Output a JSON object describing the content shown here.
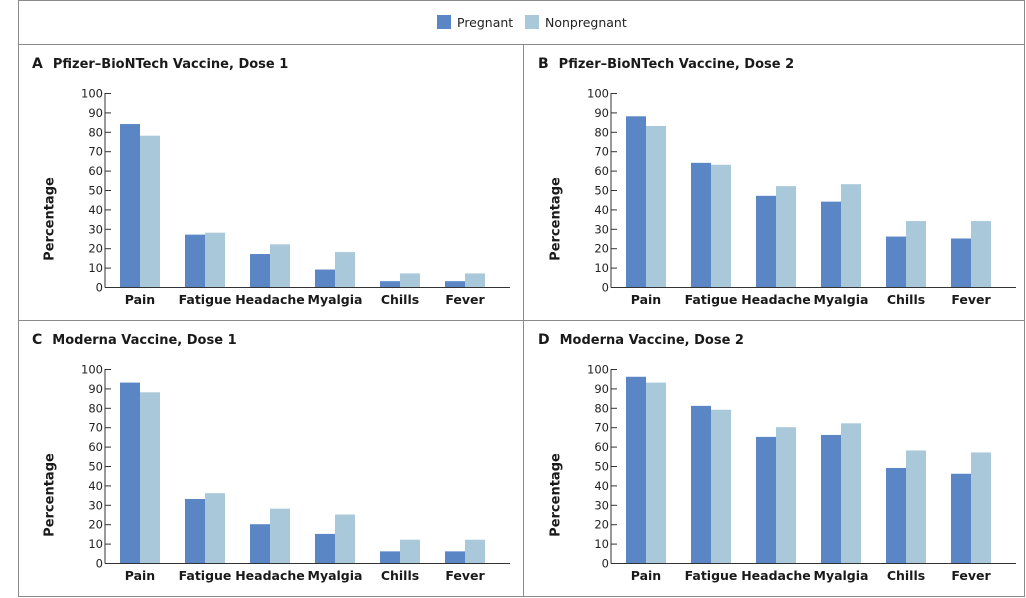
{
  "legend": {
    "items": [
      {
        "label": "Pregnant",
        "color": "#5b86c5"
      },
      {
        "label": "Nonpregnant",
        "color": "#a9c9da"
      }
    ]
  },
  "chart_data": [
    {
      "type": "bar",
      "panel": "A",
      "title": "Pfizer–BioNTech Vaccine, Dose 1",
      "xlabel": "",
      "ylabel": "Percentage",
      "ylim": [
        0,
        100
      ],
      "yticks": [
        0,
        10,
        20,
        30,
        40,
        50,
        60,
        70,
        80,
        90,
        100
      ],
      "categories": [
        "Pain",
        "Fatigue",
        "Headache",
        "Myalgia",
        "Chills",
        "Fever"
      ],
      "series": [
        {
          "name": "Pregnant",
          "values": [
            84,
            27,
            17,
            9,
            3,
            3
          ]
        },
        {
          "name": "Nonpregnant",
          "values": [
            78,
            28,
            22,
            18,
            7,
            7
          ]
        }
      ]
    },
    {
      "type": "bar",
      "panel": "B",
      "title": "Pfizer–BioNTech Vaccine, Dose 2",
      "xlabel": "",
      "ylabel": "Percentage",
      "ylim": [
        0,
        100
      ],
      "yticks": [
        0,
        10,
        20,
        30,
        40,
        50,
        60,
        70,
        80,
        90,
        100
      ],
      "categories": [
        "Pain",
        "Fatigue",
        "Headache",
        "Myalgia",
        "Chills",
        "Fever"
      ],
      "series": [
        {
          "name": "Pregnant",
          "values": [
            88,
            64,
            47,
            44,
            26,
            25
          ]
        },
        {
          "name": "Nonpregnant",
          "values": [
            83,
            63,
            52,
            53,
            34,
            34
          ]
        }
      ]
    },
    {
      "type": "bar",
      "panel": "C",
      "title": "Moderna Vaccine, Dose 1",
      "xlabel": "",
      "ylabel": "Percentage",
      "ylim": [
        0,
        100
      ],
      "yticks": [
        0,
        10,
        20,
        30,
        40,
        50,
        60,
        70,
        80,
        90,
        100
      ],
      "categories": [
        "Pain",
        "Fatigue",
        "Headache",
        "Myalgia",
        "Chills",
        "Fever"
      ],
      "series": [
        {
          "name": "Pregnant",
          "values": [
            93,
            33,
            20,
            15,
            6,
            6
          ]
        },
        {
          "name": "Nonpregnant",
          "values": [
            88,
            36,
            28,
            25,
            12,
            12
          ]
        }
      ]
    },
    {
      "type": "bar",
      "panel": "D",
      "title": "Moderna Vaccine, Dose 2",
      "xlabel": "",
      "ylabel": "Percentage",
      "ylim": [
        0,
        100
      ],
      "yticks": [
        0,
        10,
        20,
        30,
        40,
        50,
        60,
        70,
        80,
        90,
        100
      ],
      "categories": [
        "Pain",
        "Fatigue",
        "Headache",
        "Myalgia",
        "Chills",
        "Fever"
      ],
      "series": [
        {
          "name": "Pregnant",
          "values": [
            96,
            81,
            65,
            66,
            49,
            46
          ]
        },
        {
          "name": "Nonpregnant",
          "values": [
            93,
            79,
            70,
            72,
            58,
            57
          ]
        }
      ]
    }
  ]
}
